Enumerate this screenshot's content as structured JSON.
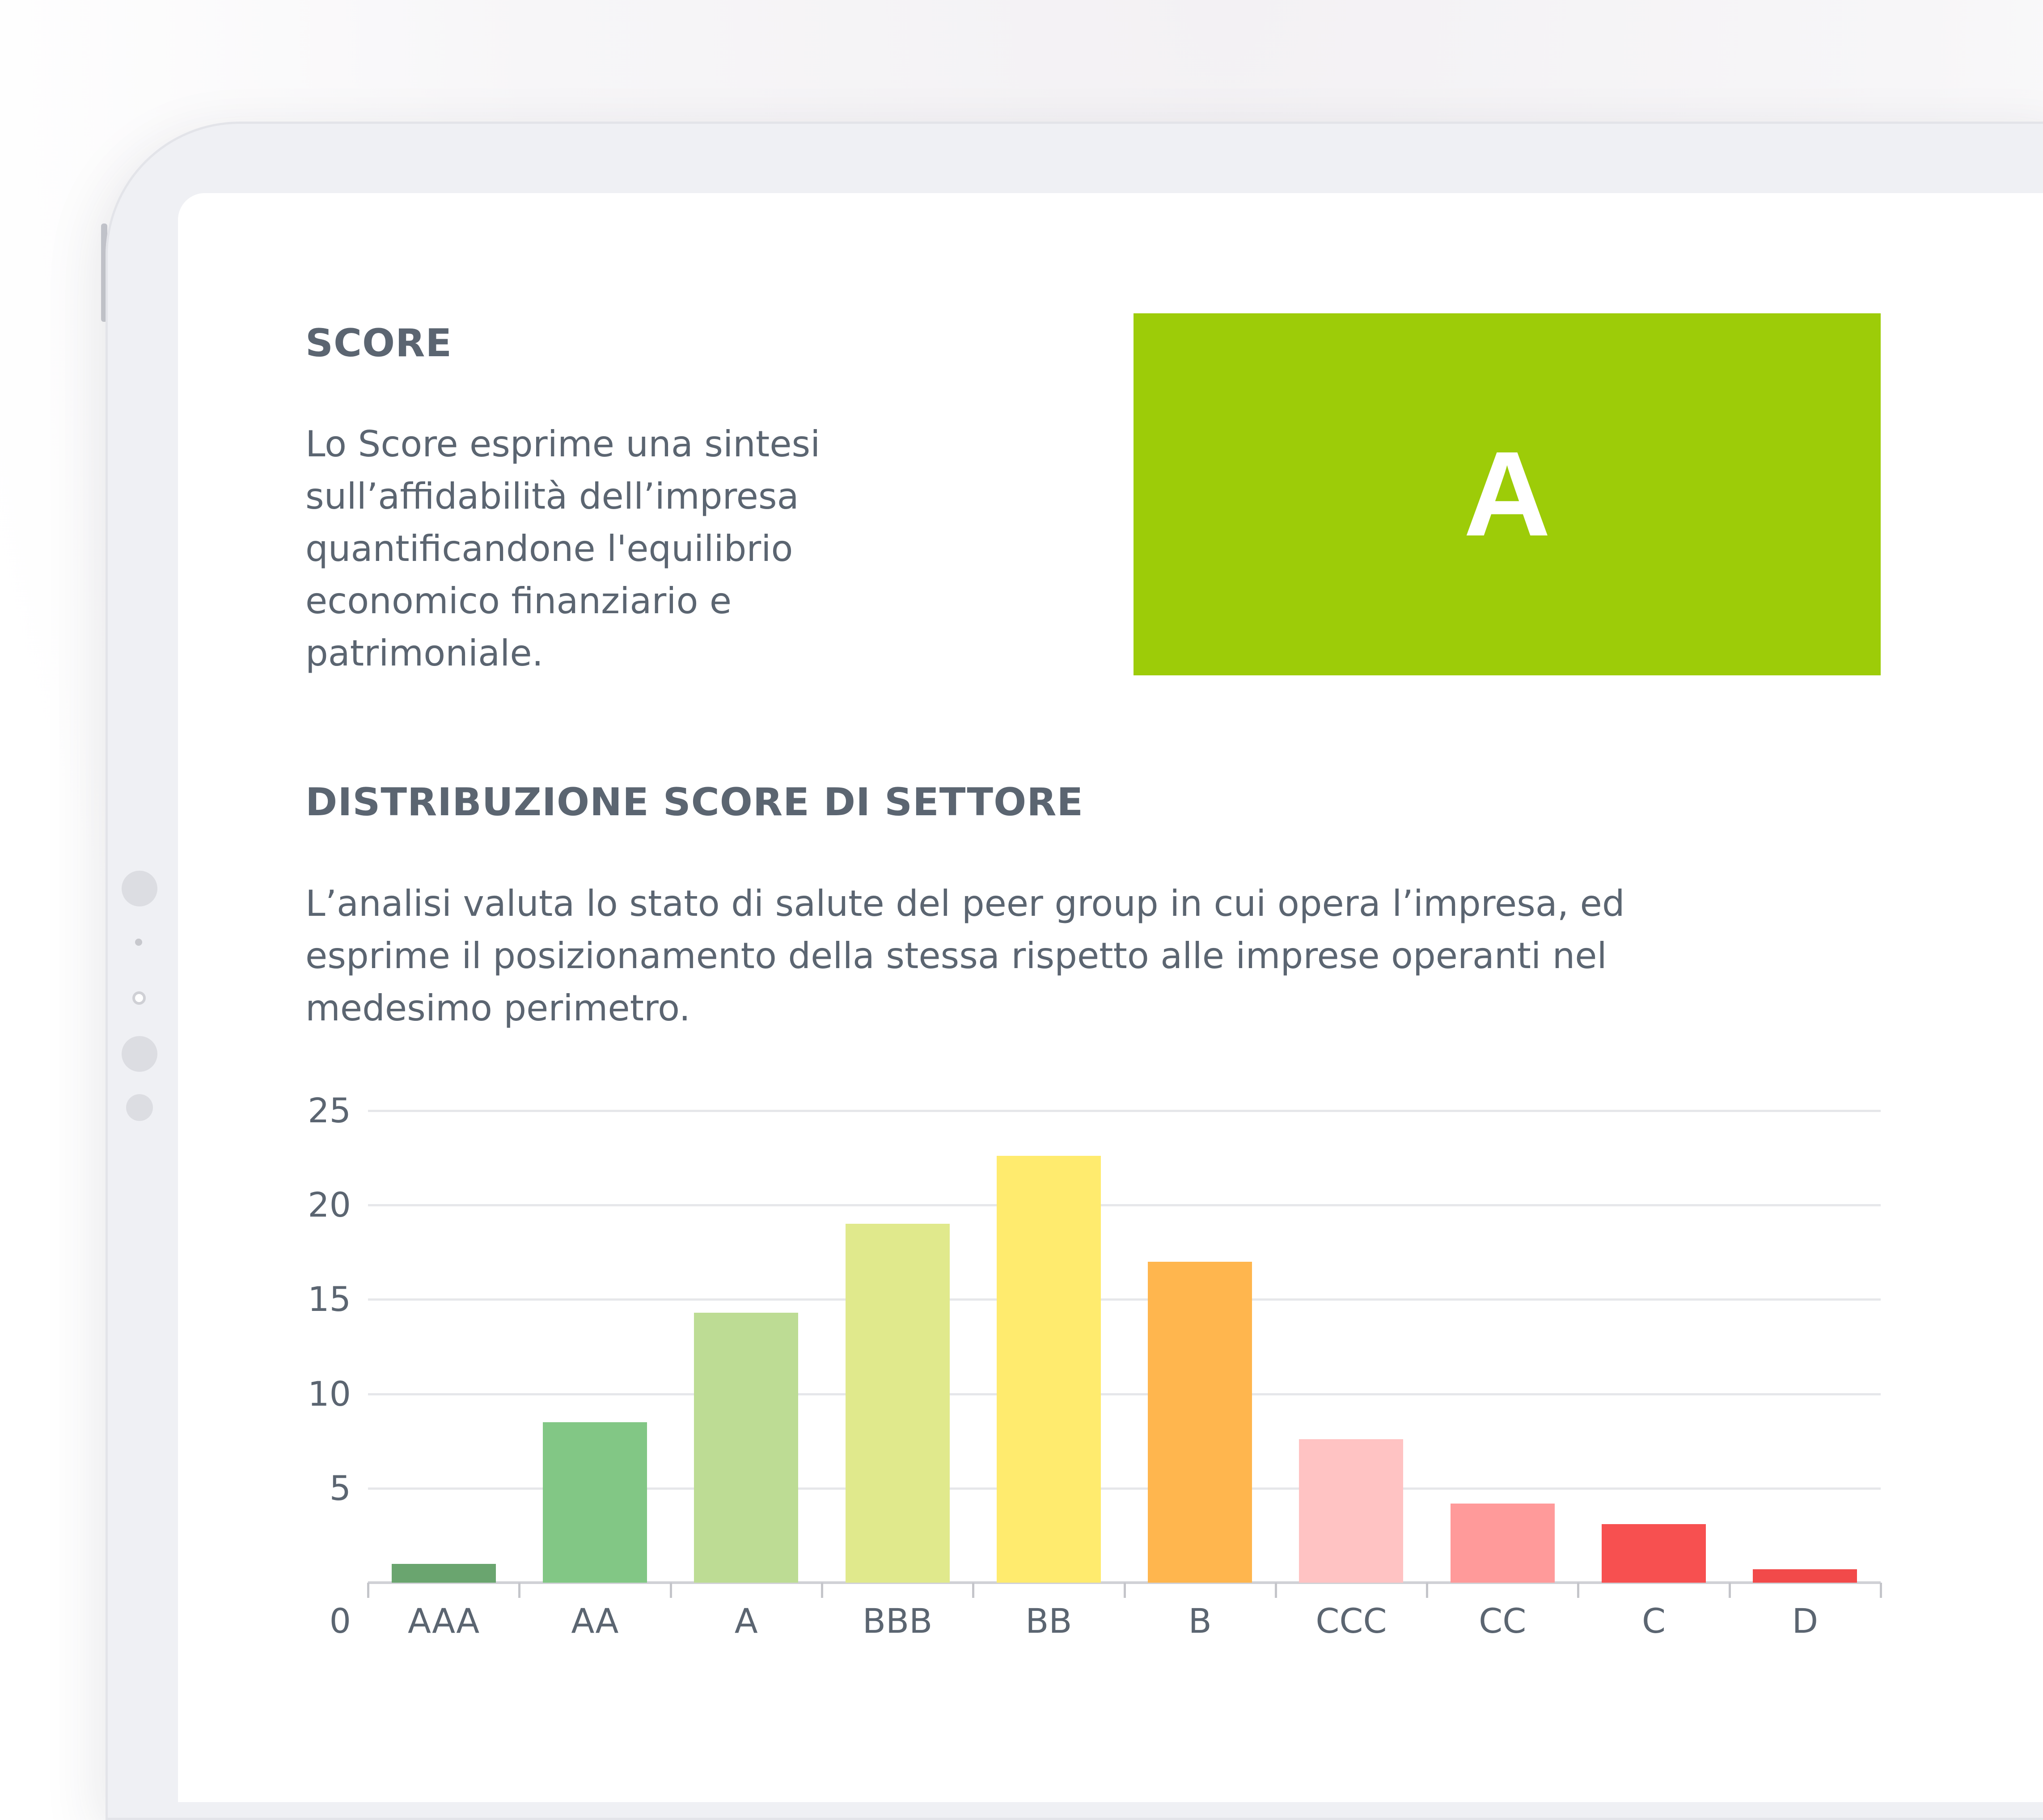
{
  "score": {
    "title": "SCORE",
    "lines": [
      "Lo Score esprime una sintesi",
      "sull’affidabilità dell’impresa",
      "quantificandone l'equilibrio",
      "economico finanziario e",
      "patrimoniale."
    ],
    "value": "A",
    "color": "#9dcc08"
  },
  "distribution": {
    "title": "DISTRIBUZIONE SCORE DI SETTORE",
    "lines": [
      "L’analisi valuta lo stato di salute del peer group in cui opera l’impresa, ed",
      "esprime il posizionamento della stessa rispetto alle imprese operanti nel",
      "medesimo perimetro."
    ]
  },
  "chart_data": {
    "type": "bar",
    "categories": [
      "AAA",
      "AA",
      "A",
      "BBB",
      "BB",
      "B",
      "CCC",
      "CC",
      "C",
      "D"
    ],
    "values": [
      1,
      8.5,
      14.3,
      19,
      22.6,
      17,
      7.6,
      4.2,
      3.1,
      0.7
    ],
    "colors": [
      "#6aa56f",
      "#82c785",
      "#bddc94",
      "#e0e98c",
      "#ffeb6e",
      "#ffb64e",
      "#ffc3c3",
      "#ff9a9a",
      "#f75050",
      "#f24a4a"
    ],
    "yticks": [
      "0",
      "5",
      "10",
      "15",
      "20",
      "25"
    ],
    "ylim": [
      0,
      25
    ],
    "grid": true,
    "title": "",
    "xlabel": "",
    "ylabel": ""
  }
}
